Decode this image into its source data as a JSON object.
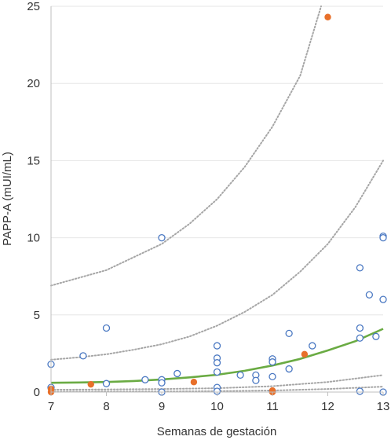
{
  "chart_data": {
    "type": "scatter",
    "xlabel": "Semanas de gestación",
    "ylabel": "PAPP-A (mUI/mL)",
    "xlim": [
      7,
      13
    ],
    "ylim": [
      0,
      25
    ],
    "x_ticks": [
      7,
      8,
      9,
      10,
      11,
      12,
      13
    ],
    "y_ticks": [
      0,
      5,
      10,
      15,
      20,
      25
    ],
    "grid": "horizontal",
    "legend": "none",
    "colors": {
      "open_points": "#4a78c2",
      "filled_points": "#e8702a",
      "trend": "#6aab43",
      "bands": "#a6a6a6"
    },
    "series": [
      {
        "marker": "open-circle",
        "points": [
          [
            7.0,
            1.8
          ],
          [
            7.0,
            0.3
          ],
          [
            7.58,
            2.35
          ],
          [
            8.0,
            4.15
          ],
          [
            8.0,
            0.55
          ],
          [
            8.7,
            0.8
          ],
          [
            9.0,
            10.0
          ],
          [
            9.0,
            0.8
          ],
          [
            9.0,
            0.6
          ],
          [
            9.0,
            0.0
          ],
          [
            9.28,
            1.2
          ],
          [
            10.0,
            3.0
          ],
          [
            10.0,
            2.2
          ],
          [
            10.0,
            1.9
          ],
          [
            10.0,
            1.3
          ],
          [
            10.0,
            0.3
          ],
          [
            10.0,
            0.05
          ],
          [
            10.42,
            1.1
          ],
          [
            10.7,
            1.1
          ],
          [
            10.7,
            0.75
          ],
          [
            11.0,
            2.15
          ],
          [
            11.0,
            1.95
          ],
          [
            11.0,
            1.0
          ],
          [
            11.0,
            0.05
          ],
          [
            11.3,
            3.8
          ],
          [
            11.3,
            1.5
          ],
          [
            11.72,
            3.0
          ],
          [
            12.58,
            8.05
          ],
          [
            12.58,
            4.15
          ],
          [
            12.58,
            3.5
          ],
          [
            12.58,
            0.05
          ],
          [
            12.75,
            6.3
          ],
          [
            12.87,
            3.6
          ],
          [
            13.0,
            10.1
          ],
          [
            13.0,
            10.0
          ],
          [
            13.0,
            6.0
          ],
          [
            13.0,
            0.0
          ]
        ]
      },
      {
        "marker": "filled-circle",
        "points": [
          [
            7.0,
            0.2
          ],
          [
            7.0,
            0.0
          ],
          [
            7.72,
            0.5
          ],
          [
            9.58,
            0.65
          ],
          [
            11.0,
            0.1
          ],
          [
            11.0,
            0.0
          ],
          [
            11.58,
            2.45
          ],
          [
            12.0,
            24.3
          ]
        ]
      }
    ],
    "curves": {
      "trend": [
        [
          7.0,
          0.6
        ],
        [
          7.5,
          0.62
        ],
        [
          8.0,
          0.65
        ],
        [
          8.5,
          0.72
        ],
        [
          9.0,
          0.82
        ],
        [
          9.5,
          0.95
        ],
        [
          10.0,
          1.12
        ],
        [
          10.5,
          1.38
        ],
        [
          11.0,
          1.72
        ],
        [
          11.5,
          2.15
        ],
        [
          12.0,
          2.7
        ],
        [
          12.5,
          3.3
        ],
        [
          13.0,
          4.1
        ]
      ],
      "bands": [
        [
          [
            7.0,
            6.9
          ],
          [
            8.0,
            7.9
          ],
          [
            9.0,
            9.6
          ],
          [
            9.5,
            10.9
          ],
          [
            10.0,
            12.5
          ],
          [
            10.5,
            14.6
          ],
          [
            11.0,
            17.2
          ],
          [
            11.5,
            20.5
          ],
          [
            11.88,
            25.0
          ]
        ],
        [
          [
            7.0,
            2.1
          ],
          [
            7.5,
            2.25
          ],
          [
            8.0,
            2.45
          ],
          [
            8.5,
            2.75
          ],
          [
            9.0,
            3.1
          ],
          [
            9.5,
            3.6
          ],
          [
            10.0,
            4.3
          ],
          [
            10.5,
            5.2
          ],
          [
            11.0,
            6.3
          ],
          [
            11.5,
            7.8
          ],
          [
            12.0,
            9.6
          ],
          [
            12.5,
            12.0
          ],
          [
            13.0,
            15.0
          ]
        ],
        [
          [
            7.0,
            0.15
          ],
          [
            8.0,
            0.17
          ],
          [
            9.0,
            0.2
          ],
          [
            10.0,
            0.25
          ],
          [
            11.0,
            0.38
          ],
          [
            12.0,
            0.65
          ],
          [
            13.0,
            1.1
          ]
        ],
        [
          [
            7.0,
            0.02
          ],
          [
            8.0,
            0.03
          ],
          [
            9.0,
            0.04
          ],
          [
            10.0,
            0.06
          ],
          [
            11.0,
            0.1
          ],
          [
            12.0,
            0.2
          ],
          [
            13.0,
            0.35
          ]
        ]
      ]
    }
  }
}
